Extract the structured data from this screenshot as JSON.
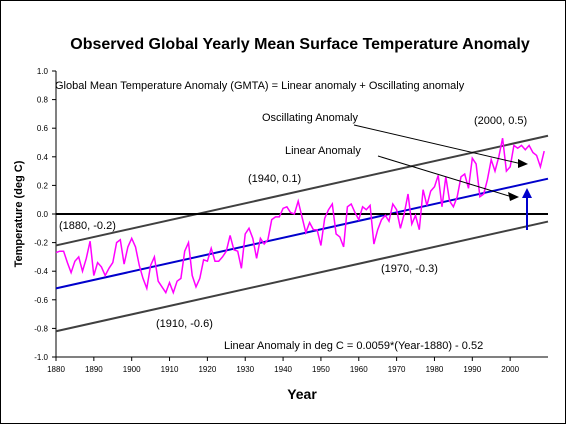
{
  "chart_data": {
    "type": "line",
    "title": "Observed Global Yearly Mean Surface Temperature Anomaly",
    "xlabel": "Year",
    "ylabel": "Temperature (deg C)",
    "xlim": [
      1880,
      2010
    ],
    "ylim": [
      -1.0,
      1.0
    ],
    "x_ticks": [
      "1880",
      "1890",
      "1900",
      "1910",
      "1920",
      "1930",
      "1940",
      "1950",
      "1960",
      "1970",
      "1980",
      "1990",
      "2000"
    ],
    "y_ticks": [
      "-1.0",
      "-0.8",
      "-0.6",
      "-0.4",
      "-0.2",
      "0.0",
      "0.2",
      "0.4",
      "0.6",
      "0.8",
      "1.0"
    ],
    "grid": false,
    "colors": {
      "observed": "#ff00ff",
      "linear": "#0000cc",
      "bounds": "#404040",
      "zero": "#000000",
      "arrow": "#0000cc"
    },
    "series": [
      {
        "x": [
          1880,
          1881,
          1882,
          1883,
          1884,
          1885,
          1886,
          1887,
          1888,
          1889,
          1890,
          1891,
          1892,
          1893,
          1894,
          1895,
          1896,
          1897,
          1898,
          1899,
          1900,
          1901,
          1902,
          1903,
          1904,
          1905,
          1906,
          1907,
          1908,
          1909,
          1910,
          1911,
          1912,
          1913,
          1914,
          1915,
          1916,
          1917,
          1918,
          1919,
          1920,
          1921,
          1922,
          1923,
          1924,
          1925,
          1926,
          1927,
          1928,
          1929,
          1930,
          1931,
          1932,
          1933,
          1934,
          1935,
          1936,
          1937,
          1938,
          1939,
          1940,
          1941,
          1942,
          1943,
          1944,
          1945,
          1946,
          1947,
          1948,
          1949,
          1950,
          1951,
          1952,
          1953,
          1954,
          1955,
          1956,
          1957,
          1958,
          1959,
          1960,
          1961,
          1962,
          1963,
          1964,
          1965,
          1966,
          1967,
          1968,
          1969,
          1970,
          1971,
          1972,
          1973,
          1974,
          1975,
          1976,
          1977,
          1978,
          1979,
          1980,
          1981,
          1982,
          1983,
          1984,
          1985,
          1986,
          1987,
          1988,
          1989,
          1990,
          1991,
          1992,
          1993,
          1994,
          1995,
          1996,
          1997,
          1998,
          1999,
          2000,
          2001,
          2002,
          2003,
          2004,
          2005,
          2006,
          2007,
          2008,
          2009
        ],
        "values": [
          -0.27,
          -0.26,
          -0.26,
          -0.34,
          -0.41,
          -0.33,
          -0.3,
          -0.4,
          -0.31,
          -0.19,
          -0.43,
          -0.34,
          -0.37,
          -0.43,
          -0.38,
          -0.34,
          -0.2,
          -0.18,
          -0.35,
          -0.23,
          -0.17,
          -0.23,
          -0.36,
          -0.45,
          -0.52,
          -0.36,
          -0.3,
          -0.47,
          -0.51,
          -0.55,
          -0.48,
          -0.55,
          -0.47,
          -0.45,
          -0.26,
          -0.2,
          -0.43,
          -0.51,
          -0.45,
          -0.32,
          -0.33,
          -0.24,
          -0.33,
          -0.33,
          -0.3,
          -0.26,
          -0.15,
          -0.25,
          -0.26,
          -0.38,
          -0.14,
          -0.1,
          -0.17,
          -0.31,
          -0.17,
          -0.21,
          -0.18,
          -0.04,
          -0.02,
          -0.02,
          0.04,
          0.05,
          0.01,
          0.0,
          0.09,
          -0.02,
          -0.13,
          -0.06,
          -0.11,
          -0.11,
          -0.22,
          -0.03,
          0.03,
          0.07,
          -0.14,
          -0.16,
          -0.23,
          0.05,
          0.07,
          0.01,
          -0.04,
          0.05,
          0.03,
          0.06,
          -0.21,
          -0.11,
          -0.04,
          -0.01,
          -0.05,
          0.07,
          0.03,
          -0.1,
          0.0,
          0.14,
          -0.07,
          -0.01,
          -0.11,
          0.17,
          0.06,
          0.16,
          0.19,
          0.27,
          0.05,
          0.26,
          0.09,
          0.05,
          0.12,
          0.26,
          0.28,
          0.18,
          0.39,
          0.35,
          0.12,
          0.14,
          0.24,
          0.38,
          0.3,
          0.4,
          0.53,
          0.3,
          0.33,
          0.48,
          0.46,
          0.48,
          0.45,
          0.48,
          0.43,
          0.41,
          0.33,
          0.44
        ]
      }
    ],
    "lines": [
      {
        "x": [
          1880,
          2010
        ],
        "values": [
          -0.52,
          0.247
        ]
      },
      {
        "x": [
          1880,
          2010
        ],
        "values": [
          -0.22,
          0.547
        ]
      },
      {
        "x": [
          1880,
          2010
        ],
        "values": [
          -0.82,
          -0.053
        ]
      },
      {
        "x": [
          1880,
          2010
        ],
        "values": [
          0.0,
          0.0
        ]
      }
    ],
    "annotations": {
      "equation_top": "Global Mean Temperature Anomaly  (GMTA) = Linear anomaly + Oscillating anomaly",
      "oscillating": "Oscillating Anomaly",
      "linear": "Linear Anomaly",
      "p2000": "(2000, 0.5)",
      "p1940": "(1940, 0.1)",
      "p1880": "(1880, -0.2)",
      "p1970": "(1970, -0.3)",
      "p1910": "(1910, -0.6)",
      "equation_bottom": "Linear Anomaly in deg C = 0.0059*(Year-1880) - 0.52"
    }
  }
}
